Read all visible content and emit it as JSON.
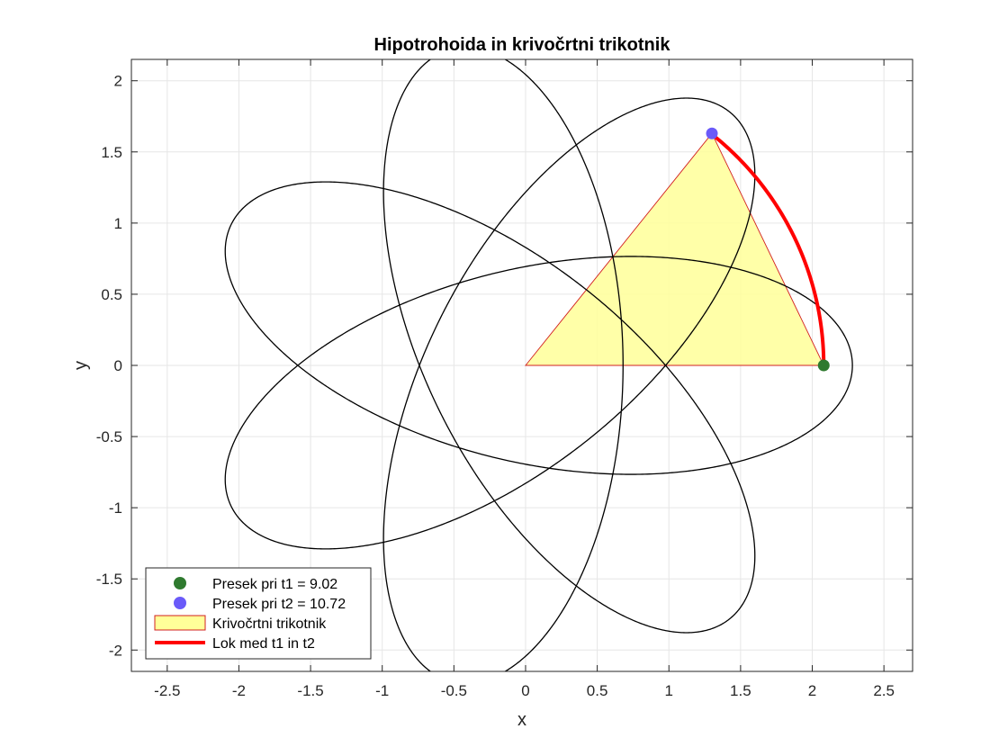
{
  "chart_data": {
    "type": "line",
    "title": "Hipotrohoida in krivočrtni trikotnik",
    "xlabel": "x",
    "ylabel": "y",
    "xlim": [
      -2.75,
      2.7
    ],
    "ylim": [
      -2.15,
      2.15
    ],
    "grid": true,
    "x_ticks": [
      -2.5,
      -2,
      -1.5,
      -1,
      -0.5,
      0,
      0.5,
      1,
      1.5,
      2,
      2.5
    ],
    "x_tick_labels": [
      "-2.5",
      "-2",
      "-1.5",
      "-1",
      "-0.5",
      "0",
      "0.5",
      "1",
      "1.5",
      "2",
      "2.5"
    ],
    "y_ticks": [
      -2,
      -1.5,
      -1,
      -0.5,
      0,
      0.5,
      1,
      1.5,
      2
    ],
    "y_tick_labels": [
      "-2",
      "-1.5",
      "-1",
      "-0.5",
      "0",
      "0.5",
      "1",
      "1.5",
      "2"
    ],
    "curve": {
      "kind": "hypotrochoid",
      "R": 1.4,
      "r": 0.6,
      "d": 1.48,
      "t_range": [
        0,
        18.8496
      ],
      "color": "#000000"
    },
    "points": [
      {
        "name": "Presek pri t1 = 9.02",
        "t": 9.02,
        "x": 2.08,
        "y": 0.0,
        "color": "#2f7a2f"
      },
      {
        "name": "Presek pri t2 = 10.72",
        "t": 10.72,
        "x": 1.3,
        "y": 1.63,
        "color": "#6a5af9"
      }
    ],
    "triangle": {
      "name": "Krivočrtni trikotnik",
      "fill": "#ffff99",
      "edge": "#d22020",
      "vertices": [
        [
          0,
          0
        ],
        [
          2.08,
          0
        ],
        [
          1.3,
          1.63
        ]
      ]
    },
    "arc": {
      "name": "Lok med t1 in t2",
      "color": "#ff0000"
    },
    "legend": {
      "placement": "bottom-left",
      "entries": [
        {
          "label": "Presek pri t1 = 9.02",
          "kind": "marker",
          "color": "#2f7a2f"
        },
        {
          "label": "Presek pri t2 = 10.72",
          "kind": "marker",
          "color": "#6a5af9"
        },
        {
          "label": "Krivočrtni trikotnik",
          "kind": "patch",
          "color": "#ffff99"
        },
        {
          "label": "Lok med t1 in t2",
          "kind": "line",
          "color": "#ff0000"
        }
      ]
    }
  }
}
